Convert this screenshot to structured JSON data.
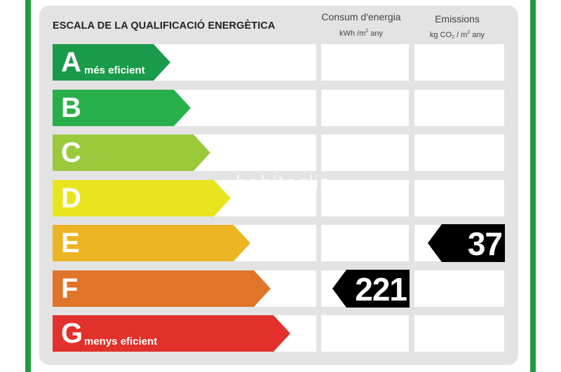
{
  "heading": "ESCALA DE LA QUALIFICACIÓ ENERGÈTICA",
  "columns": {
    "consum": {
      "title": "Consum d'energia",
      "unit_prefix": "kWh /m",
      "unit_sup": "2",
      "unit_suffix": " any"
    },
    "emissions": {
      "title": "Emissions",
      "unit_prefix": "kg CO",
      "unit_sub": "2",
      "unit_mid": " / m",
      "unit_sup": "2",
      "unit_suffix": " any"
    }
  },
  "classes": [
    {
      "letter": "A",
      "description": "més eficient",
      "color": "#1a9a4b"
    },
    {
      "letter": "B",
      "description": "",
      "color": "#27b04a"
    },
    {
      "letter": "C",
      "description": "",
      "color": "#9ac93c"
    },
    {
      "letter": "D",
      "description": "",
      "color": "#e8e51f"
    },
    {
      "letter": "E",
      "description": "",
      "color": "#ecb422"
    },
    {
      "letter": "F",
      "description": "",
      "color": "#e07428"
    },
    {
      "letter": "G",
      "description": "menys eficient",
      "color": "#e1312a"
    }
  ],
  "ratings": {
    "consumption": {
      "value": "221",
      "class": "F"
    },
    "emissions": {
      "value": "37",
      "class": "E"
    }
  },
  "watermark": "habitaclia"
}
